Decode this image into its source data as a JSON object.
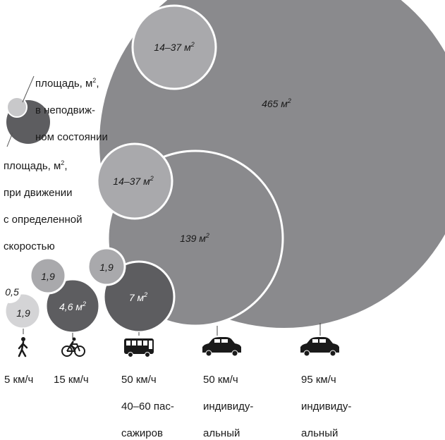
{
  "legend": {
    "static_label": "площадь, м², в неподвижном состоянии",
    "static_lines": [
      "площадь, м",
      "в неподвиж-",
      "ном состоянии"
    ],
    "moving_lines": [
      "площадь, м",
      "при движении",
      "с определенной",
      "скоростью"
    ]
  },
  "colors": {
    "large": "#8a8a8d",
    "light": "#a9a9ac",
    "dark": "#5d5d60",
    "lightest": "#d4d4d6",
    "outline": "#ffffff"
  },
  "groups": [
    {
      "mode": "пешеход",
      "icon": "pedestrian-icon",
      "speed_lines": [
        "5 км/ч"
      ],
      "static_value": "0,5",
      "moving_value": "1,9"
    },
    {
      "mode": "велосипед",
      "icon": "bicycle-icon",
      "speed_lines": [
        "15 км/ч"
      ],
      "static_value": "1,9",
      "moving_value": "4,6 м"
    },
    {
      "mode": "автобус",
      "icon": "bus-icon",
      "speed_lines": [
        "50 км/ч",
        "40–60 пас-",
        "сажиров"
      ],
      "static_value": "1,9",
      "moving_value": "7 м"
    },
    {
      "mode": "автомобиль 50",
      "icon": "car-icon",
      "speed_lines": [
        "50 км/ч",
        "индивиду-",
        "альный"
      ],
      "static_value": "14–37 м",
      "moving_value": "139 м"
    },
    {
      "mode": "автомобиль 95",
      "icon": "car-icon",
      "speed_lines": [
        "95 км/ч",
        "индивиду-",
        "альный"
      ],
      "static_value": "14–37 м",
      "moving_value": "465 м"
    }
  ],
  "sup2": "2"
}
